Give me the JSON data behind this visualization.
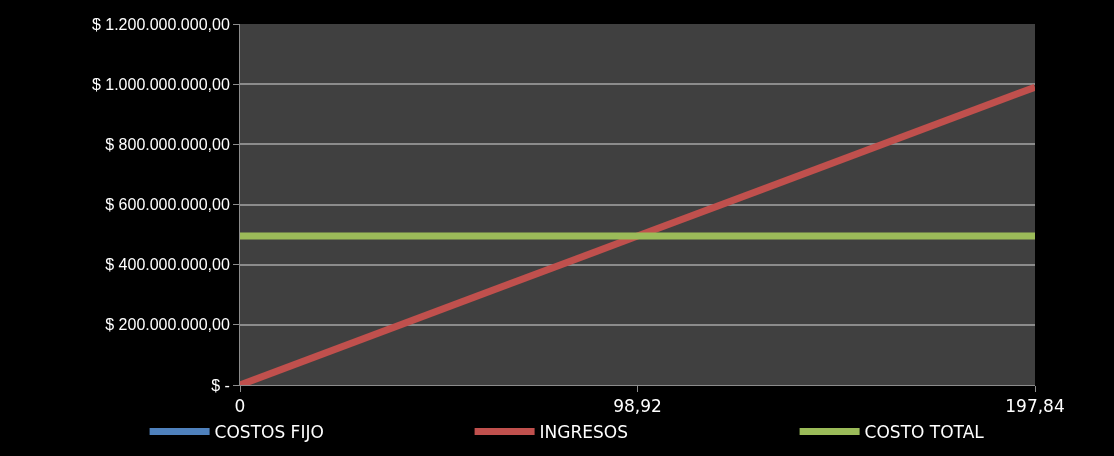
{
  "chart_data": {
    "type": "line",
    "x": [
      0,
      98.92,
      197.84
    ],
    "series": [
      {
        "name": "COSTOS FIJO",
        "color": "#4f81bd",
        "values": [
          null,
          null,
          null
        ]
      },
      {
        "name": "INGRESOS",
        "color": "#c0504d",
        "values": [
          0,
          495000000,
          990000000
        ]
      },
      {
        "name": "COSTO TOTAL",
        "color": "#9bbb59",
        "values": [
          495000000,
          495000000,
          495000000
        ]
      }
    ],
    "xlim": [
      0,
      197.84
    ],
    "xticks": [
      0,
      {
        "value": 98.92,
        "label": "98,92"
      },
      {
        "value": 197.84,
        "label": "197,84"
      }
    ],
    "ylim": [
      0,
      1200000000
    ],
    "yticks": [
      {
        "value": 0,
        "label": "$ -"
      },
      {
        "value": 200000000,
        "label": "$ 200.000.000,00"
      },
      {
        "value": 400000000,
        "label": "$ 400.000.000,00"
      },
      {
        "value": 600000000,
        "label": "$ 600.000.000,00"
      },
      {
        "value": 800000000,
        "label": "$ 800.000.000,00"
      },
      {
        "value": 1000000000,
        "label": "$ 1.000.000.000,00"
      },
      {
        "value": 1200000000,
        "label": "$ 1.200.000.000,00"
      }
    ],
    "grid": "y",
    "legend": "bottom",
    "marker": "none",
    "line_style": "solid"
  }
}
